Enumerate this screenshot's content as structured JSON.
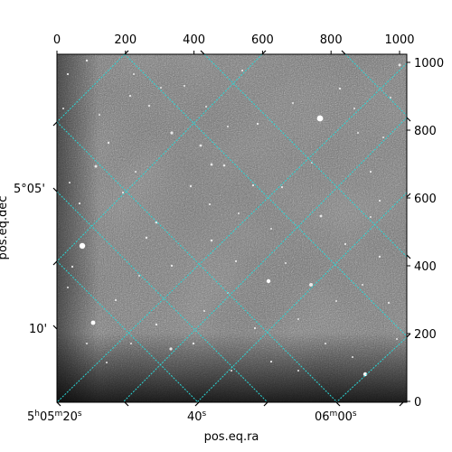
{
  "figure": {
    "top_axis_ticks": [
      "0",
      "200",
      "400",
      "600",
      "800",
      "1000"
    ],
    "right_axis_ticks": [
      "0",
      "200",
      "400",
      "600",
      "800",
      "1000"
    ],
    "bottom_ra_ticks": [
      {
        "main": "5",
        "h": "h",
        "m_val": "05",
        "m": "m",
        "s_val": "20",
        "s": "s"
      },
      {
        "main": "40",
        "s": "s"
      },
      {
        "main": "06",
        "m": "m",
        "s_val": "00",
        "s": "s"
      }
    ],
    "left_dec_ticks": [
      "5°05'",
      "10'"
    ],
    "xlabel": "pos.eq.ra",
    "ylabel": "pos.eq.dec",
    "grid_color": "#2ad6d6",
    "image_style": "grayscale astronomical exposure with point-like stars"
  }
}
